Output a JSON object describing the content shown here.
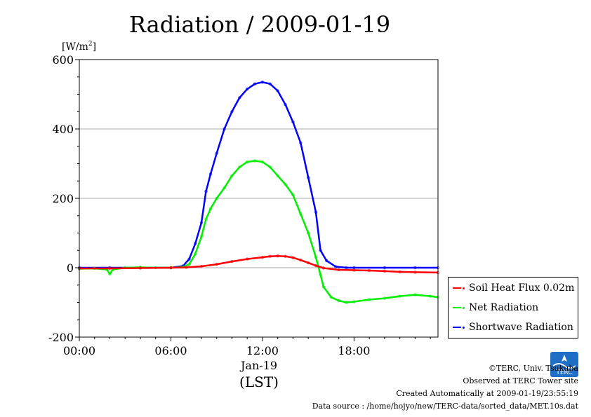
{
  "chart_data": {
    "type": "line",
    "title": "Radiation / 2009-01-19",
    "ylabel_unit": "[W/m",
    "ylabel_sup": "2",
    "ylabel_close": "]",
    "xlabel_date": "Jan-19",
    "xlabel": "(LST)",
    "x_ticks": [
      "00:00",
      "06:00",
      "12:00",
      "18:00"
    ],
    "x_tick_hours": [
      0,
      6,
      12,
      18
    ],
    "xlim": [
      0,
      23.5
    ],
    "y_ticks": [
      600,
      400,
      200,
      0,
      -200
    ],
    "ylim": [
      -200,
      600
    ],
    "grid": true,
    "legend_position": "bottom-right",
    "series": [
      {
        "name": "Soil Heat Flux 0.02m",
        "color": "#ff0000",
        "x": [
          0,
          2,
          4,
          6,
          7,
          8,
          9,
          10,
          11,
          12,
          12.5,
          13,
          13.5,
          14,
          14.5,
          15,
          15.5,
          16,
          17,
          18,
          19,
          20,
          21,
          22,
          23.5
        ],
        "values": [
          -2,
          -2,
          -1,
          0,
          1,
          4,
          10,
          18,
          25,
          30,
          33,
          34,
          33,
          29,
          22,
          14,
          6,
          -1,
          -6,
          -7,
          -8,
          -10,
          -12,
          -13,
          -14
        ]
      },
      {
        "name": "Net Radiation",
        "color": "#00ee00",
        "x": [
          0,
          1,
          1.8,
          2,
          2.2,
          3,
          4,
          5,
          6,
          6.8,
          7.2,
          7.6,
          8,
          8.3,
          8.6,
          9,
          9.5,
          10,
          10.5,
          11,
          11.5,
          12,
          12.5,
          13,
          13.5,
          14,
          14.5,
          15,
          15.5,
          15.8,
          16,
          16.5,
          17,
          17.5,
          18,
          19,
          20,
          21,
          22,
          23,
          23.5
        ],
        "values": [
          -3,
          -2,
          -5,
          -18,
          -5,
          0,
          1,
          0,
          0,
          2,
          10,
          40,
          90,
          140,
          170,
          200,
          230,
          265,
          290,
          305,
          308,
          305,
          290,
          265,
          240,
          210,
          155,
          100,
          30,
          -20,
          -55,
          -85,
          -95,
          -100,
          -98,
          -92,
          -88,
          -82,
          -78,
          -82,
          -85
        ]
      },
      {
        "name": "Shortwave Radiation",
        "color": "#0000ff",
        "x": [
          0,
          2,
          4,
          6,
          6.8,
          7.2,
          7.6,
          8,
          8.3,
          8.6,
          9,
          9.5,
          10,
          10.5,
          11,
          11.5,
          12,
          12.5,
          13,
          13.5,
          14,
          14.5,
          15,
          15.5,
          15.8,
          16.2,
          16.8,
          17.5,
          18,
          20,
          22,
          23.5
        ],
        "values": [
          0,
          0,
          0,
          0,
          5,
          25,
          70,
          130,
          220,
          270,
          330,
          400,
          450,
          490,
          515,
          530,
          535,
          530,
          510,
          470,
          420,
          360,
          260,
          160,
          50,
          20,
          3,
          0,
          0,
          0,
          0,
          0
        ]
      }
    ]
  },
  "footer": {
    "copyright": "©TERC, Univ. Tsukuba",
    "observed": "Observed at TERC Tower site",
    "created": "Created Automatically at 2009-01-19/23:55:19",
    "source": "Data source : /home/hojyo/new/TERC-data/sorted_data/MET.10s.dat"
  },
  "logo": {
    "text": "TERC",
    "color": "#1f6fc7"
  }
}
